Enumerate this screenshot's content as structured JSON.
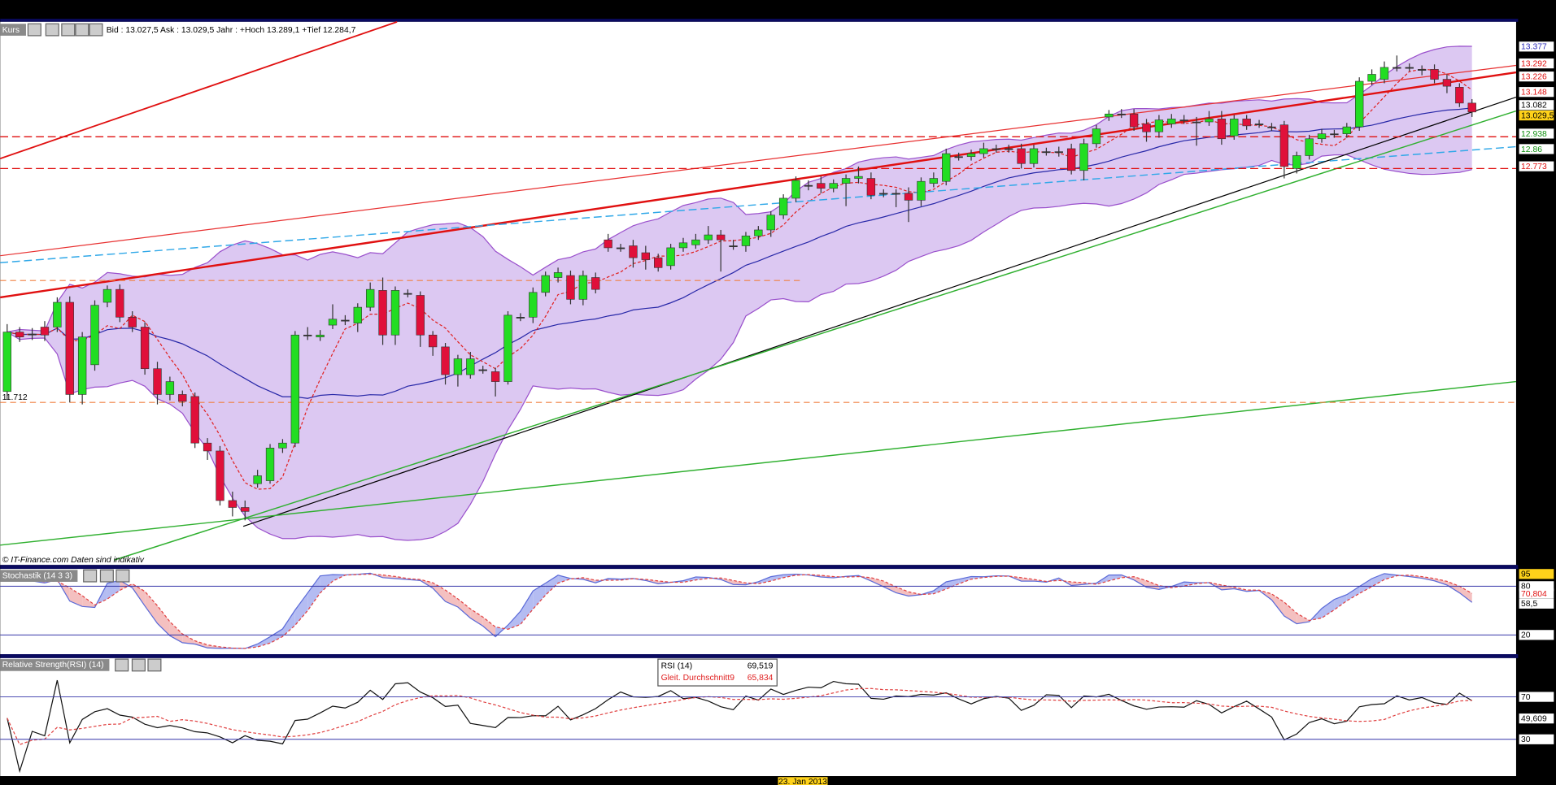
{
  "chart_data": [
    {
      "type": "candlestick",
      "panel": "Kurs",
      "quote_text": "Bid : 13.027,5 Ask : 13.029,5  Jahr : +Hoch 13.289,1 +Tief 12.284,7",
      "copyright": "© IT-Finance.com   Daten sind indikativ",
      "annotation": "11.712",
      "date_label": "23. Jan 2013",
      "up_color": "#22dd22",
      "down_color": "#e0103a",
      "ylim": [
        10.762,
        13.502
      ],
      "open": [
        11.637,
        11.937,
        11.927,
        11.962,
        11.962,
        12.087,
        11.622,
        11.772,
        12.087,
        12.152,
        12.012,
        11.962,
        11.752,
        11.622,
        11.622,
        11.612,
        11.377,
        11.337,
        11.087,
        11.052,
        11.172,
        11.187,
        11.352,
        11.377,
        11.922,
        11.912,
        11.972,
        11.997,
        11.982,
        12.062,
        12.147,
        11.922,
        12.132,
        12.122,
        11.922,
        11.862,
        11.722,
        11.722,
        11.747,
        11.737,
        11.687,
        12.012,
        12.012,
        12.137,
        12.212,
        12.222,
        12.102,
        12.212,
        12.402,
        12.362,
        12.372,
        12.337,
        12.312,
        12.272,
        12.362,
        12.377,
        12.402,
        12.427,
        12.372,
        12.372,
        12.422,
        12.452,
        12.527,
        12.612,
        12.677,
        12.687,
        12.662,
        12.687,
        12.712,
        12.712,
        12.637,
        12.637,
        12.637,
        12.602,
        12.687,
        12.697,
        12.822,
        12.822,
        12.837,
        12.862,
        12.862,
        12.862,
        12.787,
        12.847,
        12.847,
        12.862,
        12.752,
        12.887,
        13.022,
        13.037,
        13.037,
        12.987,
        12.947,
        12.987,
        13.007,
        12.997,
        12.997,
        13.012,
        12.927,
        13.012,
        12.987,
        12.972,
        12.982,
        12.762,
        12.827,
        12.912,
        12.937,
        12.937,
        12.972,
        13.202,
        13.212,
        13.272,
        13.272,
        13.262,
        13.262,
        13.212,
        13.172,
        13.092
      ],
      "high": [
        11.977,
        11.962,
        11.957,
        11.992,
        12.112,
        12.117,
        11.937,
        12.097,
        12.172,
        12.177,
        12.042,
        11.987,
        11.787,
        11.712,
        11.642,
        11.632,
        11.402,
        11.362,
        11.132,
        11.087,
        11.242,
        11.372,
        11.397,
        11.942,
        11.962,
        11.947,
        12.077,
        12.022,
        12.082,
        12.187,
        12.212,
        12.167,
        12.152,
        12.142,
        11.942,
        11.882,
        11.822,
        11.837,
        11.767,
        11.757,
        12.042,
        12.032,
        12.162,
        12.242,
        12.262,
        12.247,
        12.247,
        12.237,
        12.432,
        12.382,
        12.402,
        12.372,
        12.332,
        12.382,
        12.412,
        12.432,
        12.472,
        12.452,
        12.402,
        12.442,
        12.472,
        12.547,
        12.632,
        12.722,
        12.702,
        12.722,
        12.707,
        12.732,
        12.772,
        12.742,
        12.657,
        12.657,
        12.667,
        12.717,
        12.742,
        12.862,
        12.842,
        12.857,
        12.892,
        12.882,
        12.882,
        12.887,
        12.882,
        12.867,
        12.872,
        12.887,
        12.912,
        12.982,
        13.057,
        13.062,
        13.062,
        13.012,
        13.032,
        13.037,
        13.032,
        13.022,
        13.052,
        13.052,
        13.032,
        13.032,
        13.007,
        12.992,
        13.002,
        12.847,
        12.932,
        12.962,
        12.957,
        12.992,
        13.222,
        13.262,
        13.302,
        13.332,
        13.292,
        13.282,
        13.287,
        13.237,
        13.192,
        13.112
      ],
      "low": [
        11.597,
        11.887,
        11.897,
        11.892,
        11.937,
        11.582,
        11.572,
        11.742,
        12.062,
        11.987,
        11.937,
        11.722,
        11.572,
        11.592,
        11.562,
        11.352,
        11.292,
        11.062,
        11.007,
        10.987,
        11.152,
        11.172,
        11.327,
        11.357,
        11.897,
        11.892,
        11.952,
        11.972,
        11.937,
        12.042,
        11.872,
        11.872,
        12.112,
        11.862,
        11.817,
        11.672,
        11.662,
        11.702,
        11.727,
        11.612,
        11.672,
        11.992,
        11.982,
        12.117,
        12.187,
        12.077,
        12.072,
        12.132,
        12.342,
        12.342,
        12.262,
        12.252,
        12.242,
        12.252,
        12.342,
        12.357,
        12.382,
        12.242,
        12.352,
        12.342,
        12.402,
        12.417,
        12.507,
        12.592,
        12.652,
        12.637,
        12.642,
        12.572,
        12.687,
        12.607,
        12.617,
        12.567,
        12.492,
        12.572,
        12.667,
        12.677,
        12.802,
        12.802,
        12.817,
        12.842,
        12.842,
        12.762,
        12.767,
        12.827,
        12.822,
        12.732,
        12.702,
        12.867,
        13.002,
        13.017,
        12.952,
        12.897,
        12.917,
        12.967,
        12.987,
        12.877,
        12.977,
        12.882,
        12.907,
        12.957,
        12.967,
        12.952,
        12.712,
        12.737,
        12.807,
        12.892,
        12.917,
        12.917,
        12.952,
        13.182,
        13.192,
        13.252,
        13.252,
        13.232,
        13.192,
        13.142,
        13.072,
        13.022
      ],
      "close": [
        11.937,
        11.912,
        11.927,
        11.922,
        12.087,
        11.622,
        11.912,
        12.072,
        12.152,
        12.012,
        11.962,
        11.752,
        11.622,
        11.687,
        11.587,
        11.377,
        11.337,
        11.087,
        11.052,
        11.032,
        11.212,
        11.352,
        11.377,
        11.922,
        11.922,
        11.922,
        12.002,
        11.997,
        12.062,
        12.152,
        11.922,
        12.147,
        12.132,
        11.922,
        11.862,
        11.722,
        11.802,
        11.802,
        11.747,
        11.687,
        12.022,
        12.012,
        12.137,
        12.222,
        12.237,
        12.102,
        12.222,
        12.152,
        12.362,
        12.362,
        12.312,
        12.302,
        12.262,
        12.362,
        12.387,
        12.402,
        12.427,
        12.402,
        12.372,
        12.422,
        12.452,
        12.527,
        12.612,
        12.702,
        12.677,
        12.662,
        12.687,
        12.712,
        12.722,
        12.627,
        12.637,
        12.637,
        12.602,
        12.697,
        12.712,
        12.837,
        12.822,
        12.837,
        12.862,
        12.862,
        12.862,
        12.787,
        12.862,
        12.847,
        12.847,
        12.752,
        12.887,
        12.962,
        13.037,
        13.037,
        12.972,
        12.947,
        13.007,
        13.012,
        13.007,
        12.997,
        13.012,
        12.912,
        13.012,
        12.977,
        12.987,
        12.972,
        12.772,
        12.827,
        12.912,
        12.937,
        12.937,
        12.972,
        13.202,
        13.237,
        13.272,
        13.272,
        13.272,
        13.262,
        13.212,
        13.177,
        13.092,
        13.047
      ],
      "price_labels": [
        13.377,
        13.292,
        13.226,
        13.148,
        13.082,
        {
          "value": 13.0295,
          "label": "13.029,5"
        },
        12.938,
        12.86,
        12.773
      ],
      "price_label_colors": [
        "#2a2ab8",
        "#e01010",
        "#e01010",
        "#e01010",
        "#000000",
        "#000000",
        "#109010",
        "#109010",
        "#e01010"
      ],
      "price_label_backgrounds": [
        "#ffffff",
        "#ffffff",
        "#ffffff",
        "#ffffff",
        "#ffffff",
        "#ffd21a",
        "#ffffff",
        "#ffffff",
        "#ffffff"
      ]
    },
    {
      "type": "stochastic",
      "panel": "Stochastik (14 3 3)",
      "ylim": [
        0,
        100
      ],
      "yticks": [
        80,
        20
      ],
      "markers": [
        95,
        {
          "value": 70.804,
          "label": "70,804"
        },
        {
          "value": 58.5,
          "label": "58,5"
        }
      ],
      "marker_colors": [
        "#000000",
        "#e01010",
        "#000000"
      ],
      "marker_backgrounds": [
        "#ffd21a",
        "#ffffff",
        "#ffffff"
      ]
    },
    {
      "type": "rsi",
      "panel": "Relative Strength(RSI) (14)",
      "ylim": [
        0,
        100
      ],
      "yticks": [
        70,
        30
      ],
      "markers": [
        {
          "value": 49.609,
          "label": "49,609"
        }
      ],
      "legend": [
        {
          "name": "RSI (14)",
          "value": "69,519",
          "color": "#000000"
        },
        {
          "name": "Gleit. Durchschnitt9",
          "value": "65,834",
          "color": "#e02020"
        }
      ]
    }
  ]
}
